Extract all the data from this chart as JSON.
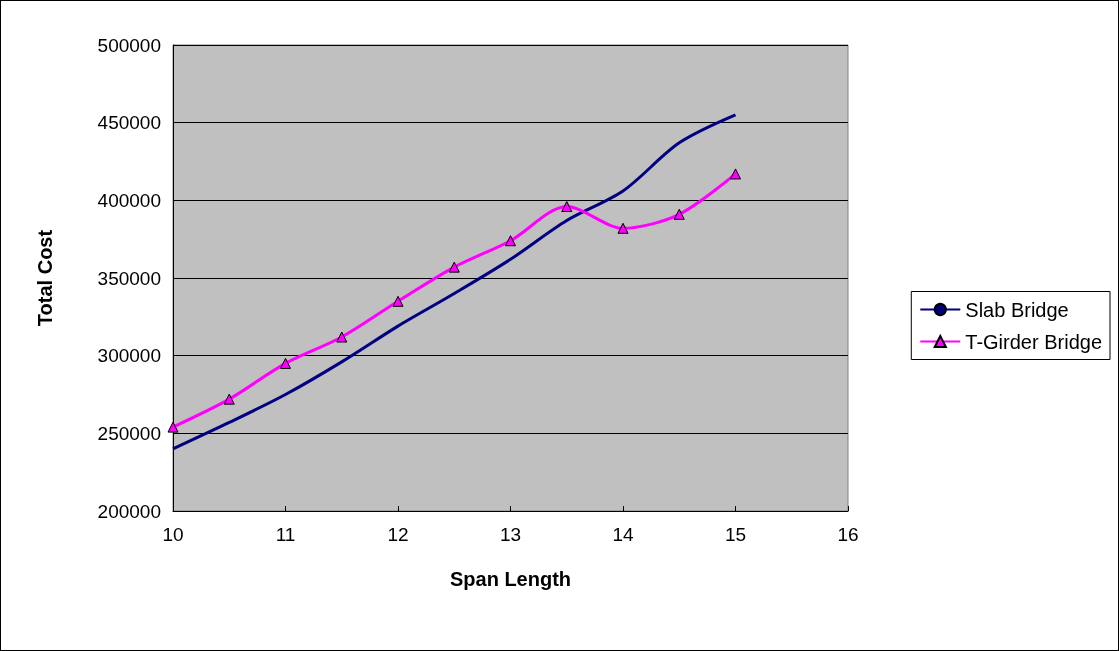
{
  "chart_data": {
    "type": "line",
    "xlabel": "Span Length",
    "ylabel": "Total Cost",
    "x": [
      10,
      10.5,
      11,
      11.5,
      12,
      12.5,
      13,
      13.5,
      14,
      14.5,
      15
    ],
    "series": [
      {
        "name": "Slab Bridge",
        "color": "#000080",
        "marker": "none",
        "values": [
          240000,
          257000,
          275000,
          296000,
          319000,
          340000,
          362000,
          387000,
          406000,
          437000,
          455000
        ]
      },
      {
        "name": "T-Girder Bridge",
        "color": "#ff00ff",
        "marker": "triangle",
        "values": [
          254000,
          272000,
          295000,
          312000,
          335000,
          357000,
          374000,
          396000,
          382000,
          391000,
          417000
        ]
      }
    ],
    "xlim": [
      10,
      16
    ],
    "xticks": [
      10,
      11,
      12,
      13,
      14,
      15,
      16
    ],
    "ylim": [
      200000,
      500000
    ],
    "yticks": [
      200000,
      250000,
      300000,
      350000,
      400000,
      450000,
      500000
    ],
    "grid": "y",
    "legend": "right"
  }
}
